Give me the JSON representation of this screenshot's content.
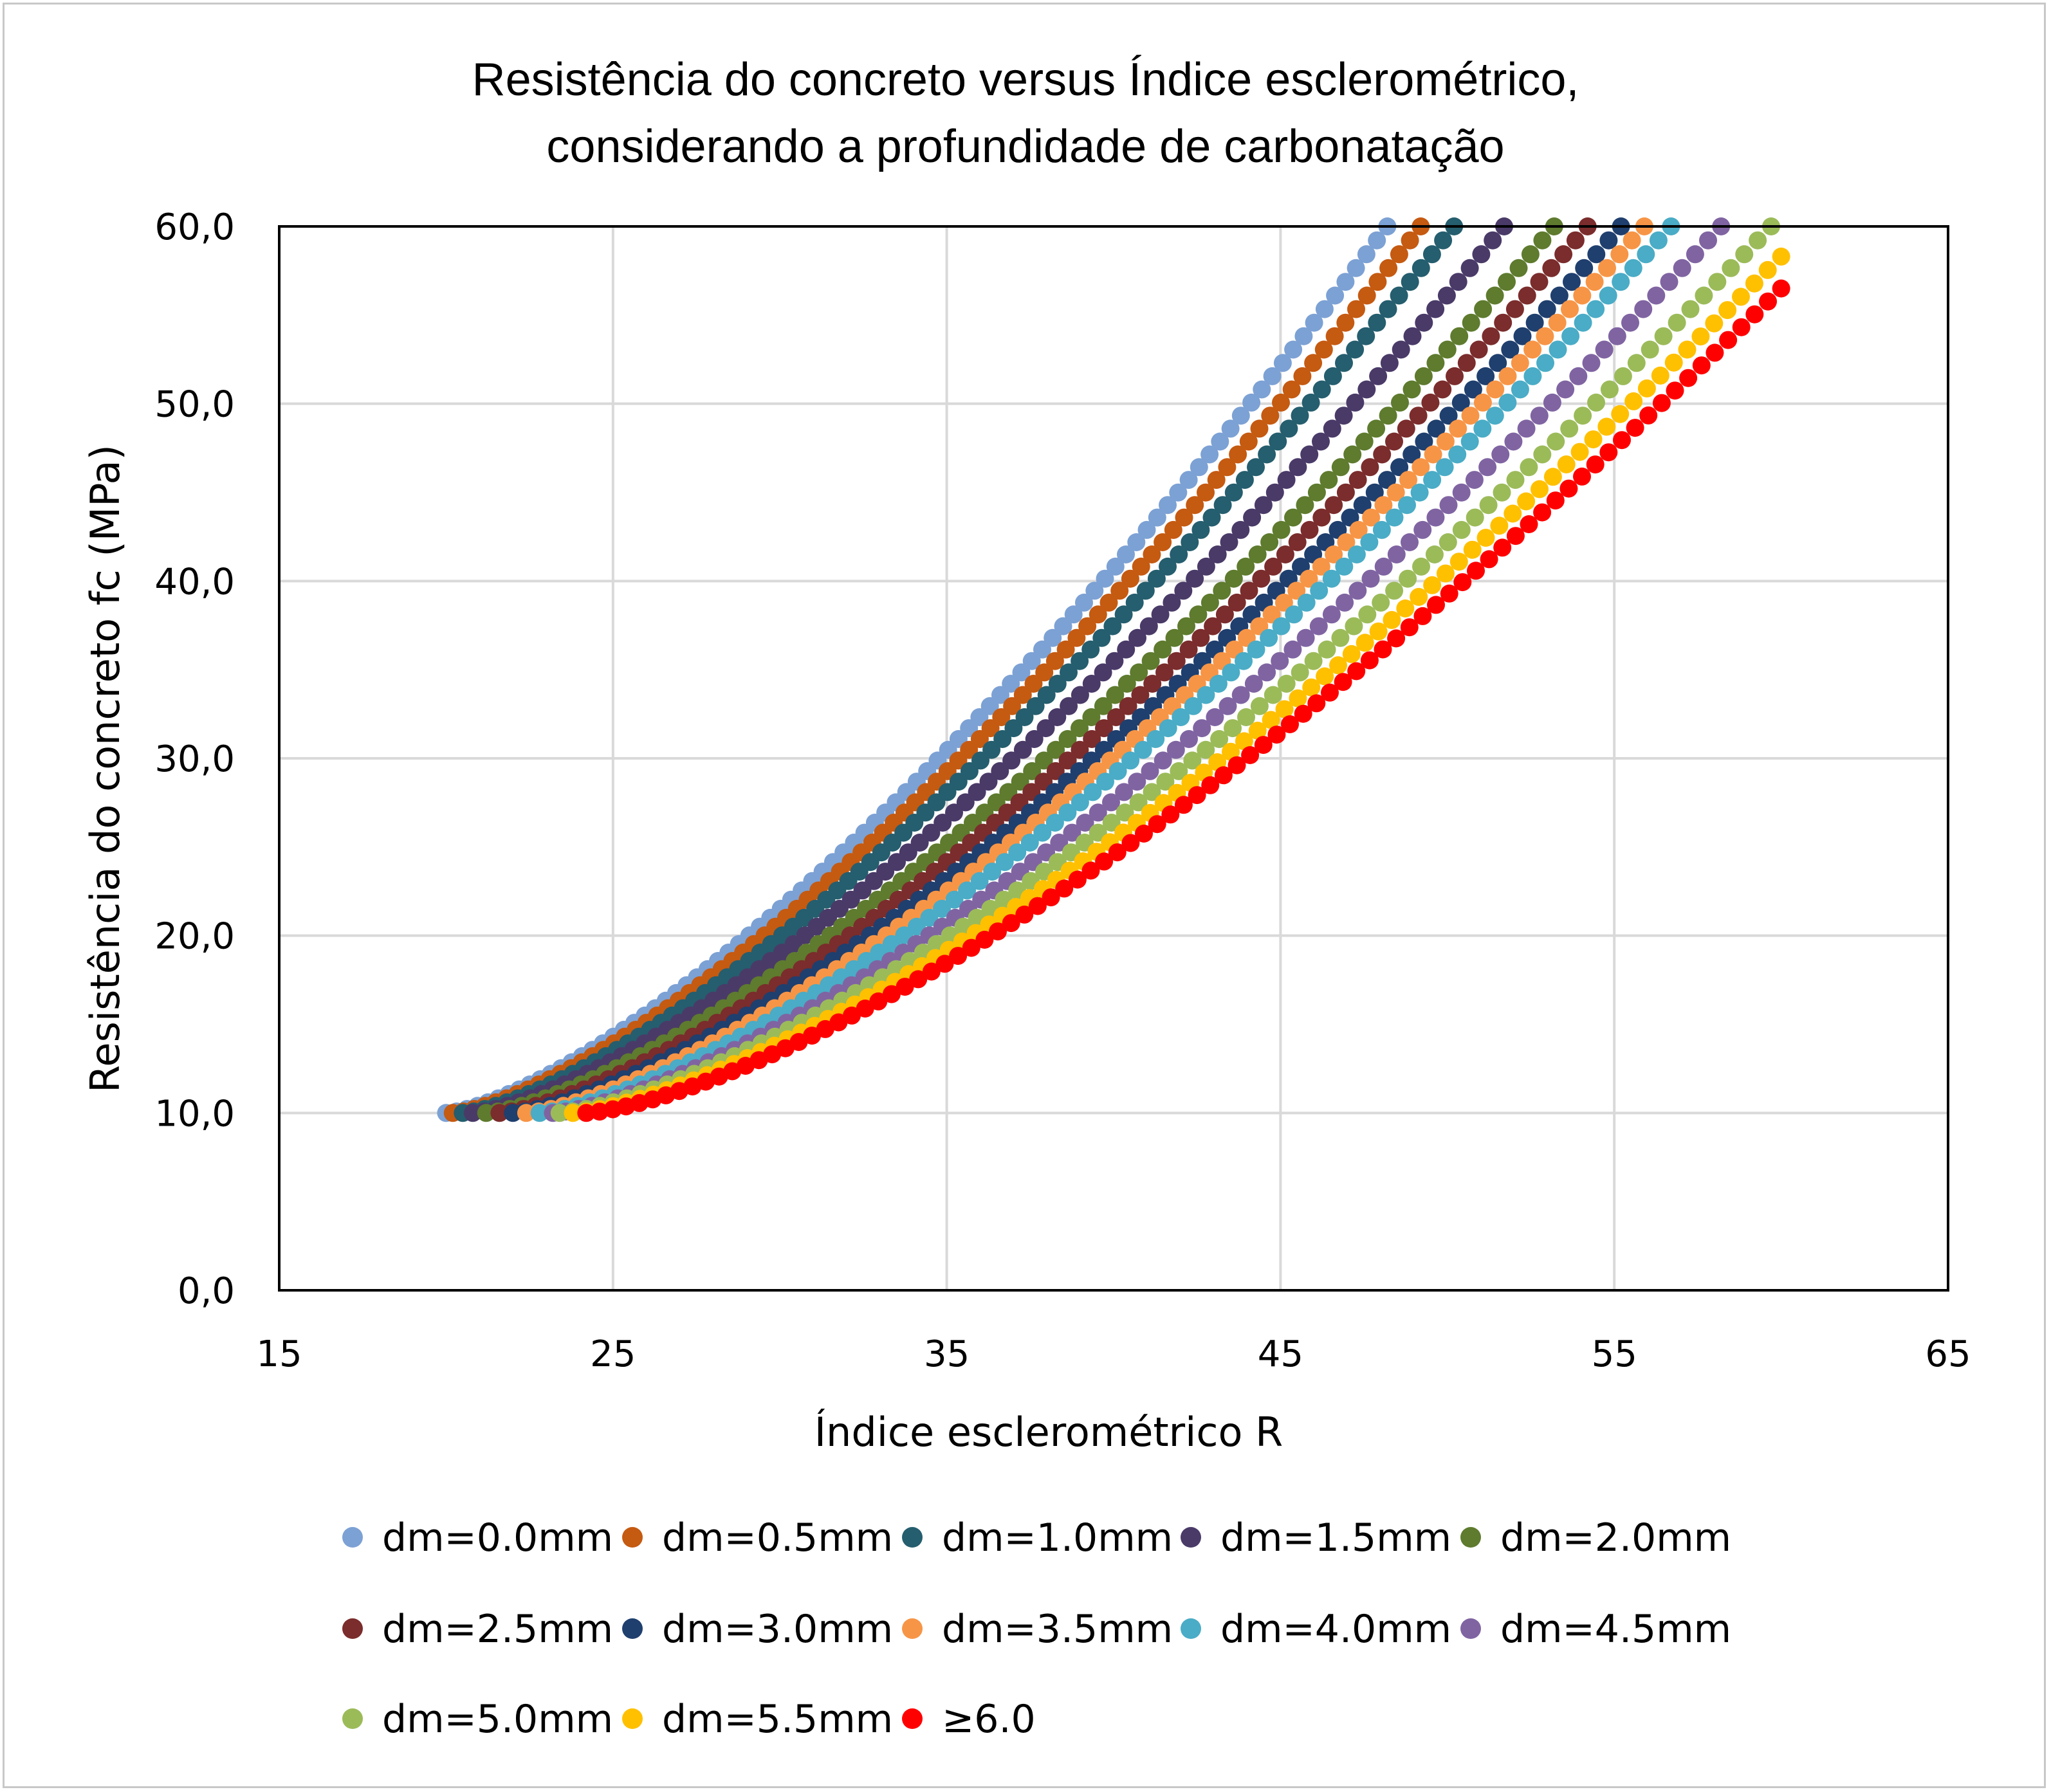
{
  "chart_data": {
    "type": "scatter",
    "title": "Resistência do concreto versus Índice esclerométrico, considerando a profundidade de carbonatação",
    "title_lines": [
      "Resistência do concreto versus Índice esclerométrico,",
      "considerando a profundidade de carbonatação"
    ],
    "xlabel": "Índice esclerométrico R",
    "ylabel": "Resistência do concreto fc (MPa)",
    "xlim": [
      15,
      65
    ],
    "ylim": [
      0,
      60
    ],
    "x_ticks": [
      "15",
      "25",
      "35",
      "45",
      "55",
      "65"
    ],
    "y_ticks": [
      "0,0",
      "10,0",
      "20,0",
      "30,0",
      "40,0",
      "50,0",
      "60,0"
    ],
    "grid": true,
    "legend_position": "bottom",
    "series": [
      {
        "name": "dm=0.0mm",
        "color": "#7CA1D4",
        "x_start": 20.0,
        "x_end": 48.2,
        "y_start": 10,
        "y_end": 60
      },
      {
        "name": "dm=0.5mm",
        "color": "#C55A11",
        "x_start": 20.2,
        "x_end": 49.2,
        "y_start": 10,
        "y_end": 60
      },
      {
        "name": "dm=1.0mm",
        "color": "#255E6E",
        "x_start": 20.5,
        "x_end": 50.2,
        "y_start": 10,
        "y_end": 60
      },
      {
        "name": "dm=1.5mm",
        "color": "#4A3A68",
        "x_start": 20.8,
        "x_end": 51.7,
        "y_start": 10,
        "y_end": 60
      },
      {
        "name": "dm=2.0mm",
        "color": "#5E7B2E",
        "x_start": 21.2,
        "x_end": 53.2,
        "y_start": 10,
        "y_end": 60
      },
      {
        "name": "dm=2.5mm",
        "color": "#7B2C2C",
        "x_start": 21.6,
        "x_end": 54.2,
        "y_start": 10,
        "y_end": 60
      },
      {
        "name": "dm=3.0mm",
        "color": "#1F3F6E",
        "x_start": 22.0,
        "x_end": 55.2,
        "y_start": 10,
        "y_end": 60
      },
      {
        "name": "dm=3.5mm",
        "color": "#F79546",
        "x_start": 22.4,
        "x_end": 55.9,
        "y_start": 10,
        "y_end": 60
      },
      {
        "name": "dm=4.0mm",
        "color": "#4AACC6",
        "x_start": 22.8,
        "x_end": 56.7,
        "y_start": 10,
        "y_end": 60
      },
      {
        "name": "dm=4.5mm",
        "color": "#8064A2",
        "x_start": 23.2,
        "x_end": 58.2,
        "y_start": 10,
        "y_end": 60
      },
      {
        "name": "dm=5.0mm",
        "color": "#9BBB59",
        "x_start": 23.4,
        "x_end": 59.7,
        "y_start": 10,
        "y_end": 60
      },
      {
        "name": "dm=5.5mm",
        "color": "#FFC000",
        "x_start": 23.8,
        "x_end": 60.0,
        "y_start": 10,
        "y_end": 58.3
      },
      {
        "name": "≥6.0",
        "color": "#FF0000",
        "x_start": 24.2,
        "x_end": 60.0,
        "y_start": 10,
        "y_end": 56.5
      }
    ]
  }
}
